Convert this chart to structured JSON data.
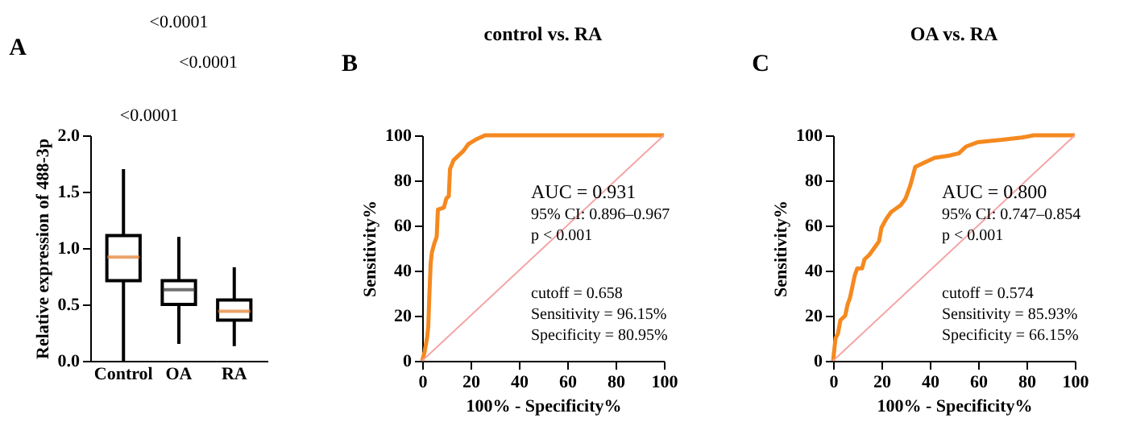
{
  "chart_data": [
    {
      "type": "box",
      "ylabel": "Relative expression of 488-3p",
      "categories": [
        "Control",
        "OA",
        "RA"
      ],
      "boxes": [
        {
          "low": 0.0,
          "q1": 0.71,
          "median": 0.92,
          "q3": 1.11,
          "high": 1.7
        },
        {
          "low": 0.15,
          "q1": 0.5,
          "median": 0.63,
          "q3": 0.71,
          "high": 1.1
        },
        {
          "low": 0.13,
          "q1": 0.36,
          "median": 0.44,
          "q3": 0.54,
          "high": 0.83
        }
      ],
      "colors": [
        "#e07b2a",
        "#333333",
        "#e07b2a"
      ],
      "ylim": [
        0,
        2
      ],
      "yticks": [
        {
          "value": 0,
          "label": "0.0"
        },
        {
          "value": 0.5,
          "label": "0.5"
        },
        {
          "value": 1,
          "label": "1.0"
        },
        {
          "value": 1.5,
          "label": "1.5"
        },
        {
          "value": 2,
          "label": "2.0"
        }
      ],
      "annotations": [
        "A",
        "<0.0001",
        "<0.0001",
        "<0.0001"
      ]
    },
    {
      "type": "line",
      "title": "control vs. RA",
      "xlabel": "100% - Specificity%",
      "ylabel": "Sensitivity%",
      "xlim": [
        0,
        100
      ],
      "ylim": [
        0,
        100
      ],
      "xticks": [
        0,
        20,
        40,
        60,
        80,
        100
      ],
      "yticks": [
        0,
        20,
        40,
        60,
        80,
        100
      ],
      "series": [
        {
          "color": "#f5891f",
          "x": [
            0,
            1,
            2,
            2.5,
            3,
            3.5,
            4,
            5,
            6,
            6.5,
            9,
            10,
            11,
            11.5,
            13,
            15,
            17,
            19,
            22,
            26,
            100
          ],
          "values": [
            0,
            4,
            10,
            15,
            30,
            43,
            48,
            52,
            55,
            67,
            68,
            72,
            73,
            85,
            89,
            91,
            93,
            96,
            98,
            100,
            100
          ]
        },
        {
          "color": "#f4a6a6",
          "x": [
            0,
            100
          ],
          "values": [
            0,
            100
          ]
        }
      ],
      "annotations": [
        "B",
        "AUC = 0.931",
        "95% CI: 0.896–0.967",
        "p < 0.001",
        "cutoff = 0.658",
        "Sensitivity = 96.15%",
        "Specificity = 80.95%"
      ]
    },
    {
      "type": "line",
      "title": "OA vs. RA",
      "xlabel": "100% - Specificity%",
      "ylabel": "Sensitivity%",
      "xlim": [
        0,
        100
      ],
      "ylim": [
        0,
        100
      ],
      "xticks": [
        0,
        20,
        40,
        60,
        80,
        100
      ],
      "yticks": [
        0,
        20,
        40,
        60,
        80,
        100
      ],
      "series": [
        {
          "color": "#f5891f",
          "x": [
            0,
            0.5,
            1,
            2,
            3,
            5,
            6,
            7,
            8,
            9,
            10,
            12,
            13,
            15,
            17,
            19,
            20,
            22,
            24,
            28,
            30,
            32,
            34,
            38,
            42,
            48,
            52,
            55,
            60,
            70,
            78,
            83,
            100
          ],
          "values": [
            0,
            5,
            10,
            12,
            18,
            20,
            25,
            28,
            33,
            38,
            41,
            41,
            45,
            47,
            50,
            53,
            59,
            63,
            66,
            69,
            72,
            78,
            86,
            88,
            90,
            91,
            92,
            95,
            97,
            98,
            99,
            100,
            100
          ]
        },
        {
          "color": "#f4a6a6",
          "x": [
            0,
            100
          ],
          "values": [
            0,
            100
          ]
        }
      ],
      "annotations": [
        "C",
        "AUC = 0.800",
        "95% CI: 0.747–0.854",
        "p < 0.001",
        "cutoff = 0.574",
        "Sensitivity = 85.93%",
        "Specificity = 66.15%"
      ]
    }
  ]
}
